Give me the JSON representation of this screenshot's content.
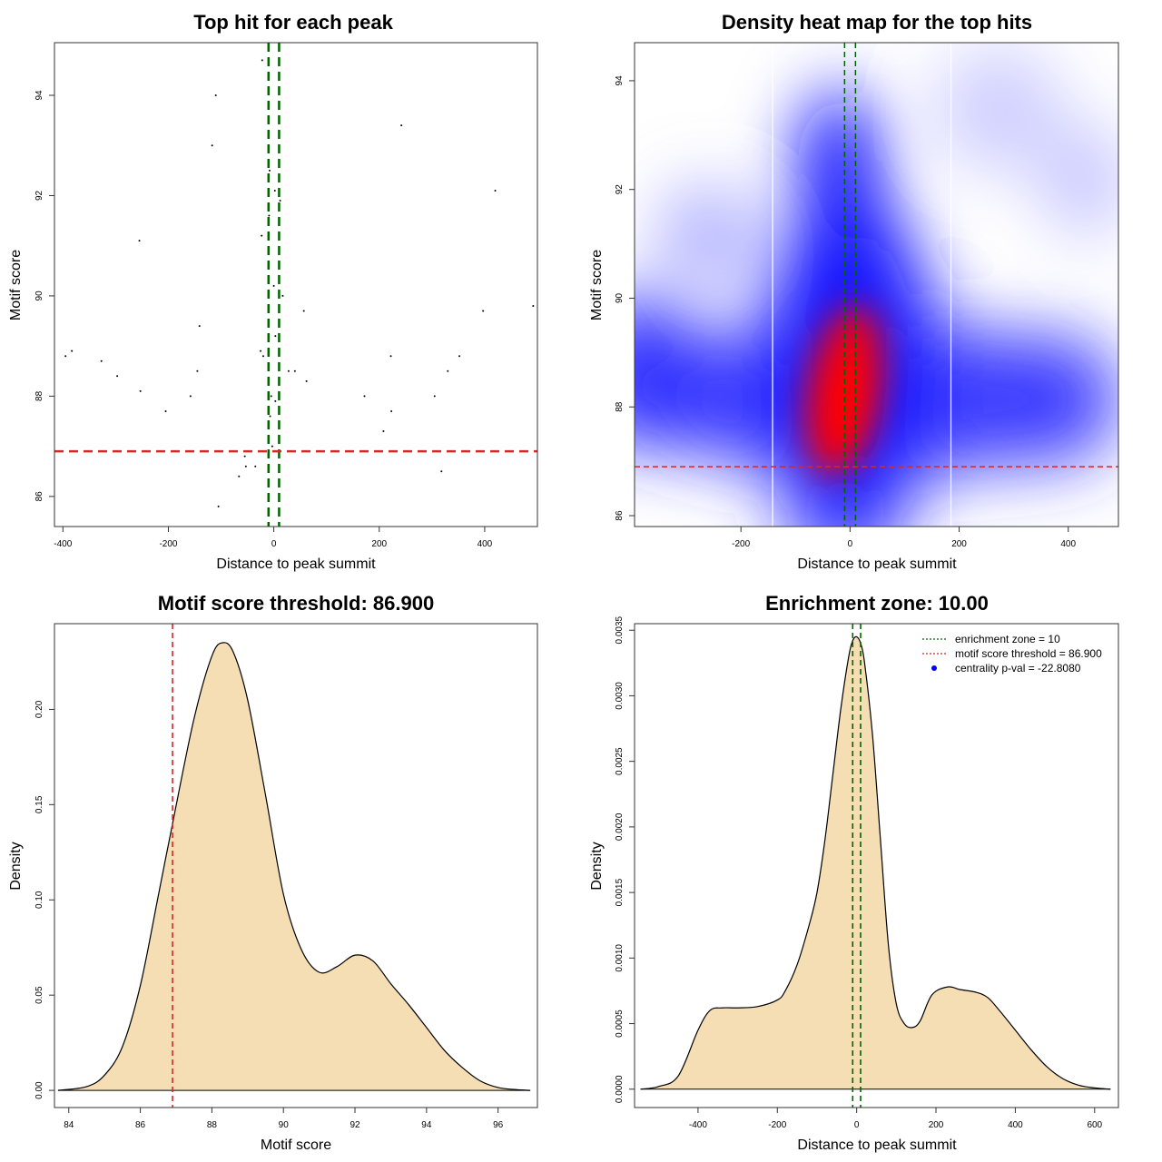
{
  "chart_data": [
    {
      "id": "scatter",
      "type": "scatter",
      "title": "Top hit for each peak",
      "xlabel": "Distance to peak summit",
      "ylabel": "Motif score",
      "xlim": [
        -416,
        500
      ],
      "ylim": [
        85.4,
        95.05
      ],
      "xticks": [
        "-400",
        "-200",
        "0",
        "200",
        "400"
      ],
      "yticks": [
        "86",
        "88",
        "90",
        "92",
        "94"
      ],
      "points": [
        [
          -395,
          88.8
        ],
        [
          -383,
          88.9
        ],
        [
          -327,
          88.7
        ],
        [
          -297,
          88.4
        ],
        [
          -255,
          91.1
        ],
        [
          -253,
          88.1
        ],
        [
          -205,
          87.7
        ],
        [
          -158,
          88.0
        ],
        [
          -145,
          88.5
        ],
        [
          -141,
          89.4
        ],
        [
          -110,
          94.0
        ],
        [
          -117,
          93.0
        ],
        [
          -105,
          85.8
        ],
        [
          -66,
          86.4
        ],
        [
          -55,
          86.8
        ],
        [
          -53,
          86.6
        ],
        [
          -35,
          86.6
        ],
        [
          -22,
          94.7
        ],
        [
          -23,
          91.2
        ],
        [
          -25,
          88.9
        ],
        [
          -20,
          88.8
        ],
        [
          -8,
          92.5
        ],
        [
          -9,
          91.6
        ],
        [
          -5,
          88.0
        ],
        [
          -7,
          87.6
        ],
        [
          -3,
          87.0
        ],
        [
          0,
          90.2
        ],
        [
          2,
          92.1
        ],
        [
          3,
          89.2
        ],
        [
          3,
          87.9
        ],
        [
          5,
          86.9
        ],
        [
          12,
          91.9
        ],
        [
          17,
          90.0
        ],
        [
          28,
          88.5
        ],
        [
          40,
          88.5
        ],
        [
          57,
          89.7
        ],
        [
          62,
          88.3
        ],
        [
          172,
          88.0
        ],
        [
          208,
          87.3
        ],
        [
          222,
          88.8
        ],
        [
          223,
          87.7
        ],
        [
          242,
          93.4
        ],
        [
          305,
          88.0
        ],
        [
          318,
          86.5
        ],
        [
          330,
          88.5
        ],
        [
          352,
          88.8
        ],
        [
          397,
          89.7
        ],
        [
          420,
          92.1
        ],
        [
          492,
          89.8
        ]
      ],
      "vlines": [
        -10,
        10
      ],
      "hline": 86.9
    },
    {
      "id": "heatmap",
      "type": "heatmap",
      "title": "Density heat map for the top hits",
      "xlabel": "Distance to peak summit",
      "ylabel": "Motif score",
      "xlim": [
        -395,
        492
      ],
      "ylim": [
        85.8,
        94.7
      ],
      "xticks": [
        "-200",
        "0",
        "200",
        "400"
      ],
      "yticks": [
        "86",
        "88",
        "90",
        "92",
        "94"
      ],
      "white_vlines": [
        -142,
        185
      ],
      "vlines": [
        -10,
        10
      ],
      "hline": 86.9
    },
    {
      "id": "score_density",
      "type": "area",
      "title": "Motif score threshold: 86.900",
      "xlabel": "Motif score",
      "ylabel": "Density",
      "xlim": [
        83.6,
        97.1
      ],
      "ylim": [
        -0.009,
        0.245
      ],
      "xticks": [
        "84",
        "86",
        "88",
        "90",
        "92",
        "94",
        "96"
      ],
      "yticks": [
        "0.00",
        "0.05",
        "0.10",
        "0.15",
        "0.20"
      ],
      "x": [
        83.7,
        84.5,
        85.0,
        85.5,
        86.0,
        86.5,
        86.9,
        87.5,
        88.0,
        88.3,
        88.6,
        89.0,
        89.5,
        90.0,
        90.5,
        91.0,
        91.5,
        92.0,
        92.5,
        93.0,
        93.5,
        94.0,
        94.5,
        95.0,
        95.5,
        96.0,
        96.5,
        96.9
      ],
      "y": [
        0.0,
        0.002,
        0.008,
        0.023,
        0.055,
        0.102,
        0.14,
        0.195,
        0.228,
        0.235,
        0.23,
        0.205,
        0.155,
        0.103,
        0.074,
        0.062,
        0.065,
        0.071,
        0.068,
        0.056,
        0.045,
        0.033,
        0.021,
        0.012,
        0.005,
        0.0015,
        0.0004,
        0.0
      ],
      "vline": 86.9,
      "fill": "#f5deb3"
    },
    {
      "id": "distance_density",
      "type": "area",
      "title": "Enrichment zone: 10.00",
      "xlabel": "Distance to peak summit",
      "ylabel": "Density",
      "xlim": [
        -560,
        660
      ],
      "ylim": [
        -0.00014,
        0.00355
      ],
      "xticks": [
        "-400",
        "-200",
        "0",
        "200",
        "400",
        "600"
      ],
      "yticks": [
        "0.0000",
        "0.0005",
        "0.0010",
        "0.0015",
        "0.0020",
        "0.0025",
        "0.0030",
        "0.0035"
      ],
      "x": [
        -545,
        -500,
        -450,
        -400,
        -370,
        -340,
        -300,
        -250,
        -200,
        -180,
        -150,
        -120,
        -100,
        -80,
        -60,
        -40,
        -20,
        -10,
        0,
        10,
        20,
        40,
        60,
        80,
        100,
        120,
        140,
        160,
        190,
        230,
        260,
        300,
        330,
        360,
        400,
        440,
        480,
        520,
        560,
        600,
        640
      ],
      "y": [
        0.0,
        2e-05,
        0.0001,
        0.00045,
        0.0006,
        0.00062,
        0.00062,
        0.00063,
        0.00068,
        0.00075,
        0.00095,
        0.00125,
        0.0015,
        0.0019,
        0.0024,
        0.0029,
        0.0033,
        0.00342,
        0.00345,
        0.0034,
        0.00325,
        0.0027,
        0.0019,
        0.0011,
        0.00065,
        0.0005,
        0.00047,
        0.00052,
        0.00072,
        0.00078,
        0.00076,
        0.00074,
        0.0007,
        0.0006,
        0.00045,
        0.0003,
        0.00017,
        8e-05,
        3e-05,
        1e-05,
        0.0
      ],
      "vlines": [
        -10,
        10
      ],
      "fill": "#f5deb3",
      "legend_position": "top-right",
      "legend": [
        {
          "label": "enrichment zone = 10",
          "color": "#006400",
          "style": "dotted-line"
        },
        {
          "label": "motif score threshold = 86.900",
          "color": "#d62728",
          "style": "dotted-line"
        },
        {
          "label": "centrality p-val = -22.8080",
          "color": "#0000ff",
          "style": "dot"
        }
      ]
    }
  ]
}
